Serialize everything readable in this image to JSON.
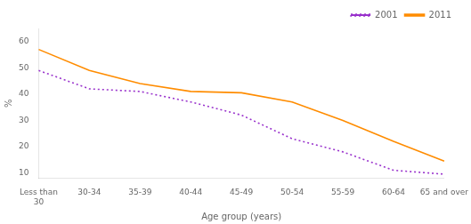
{
  "chart_data": {
    "type": "line",
    "xlabel": "Age group (years)",
    "ylabel": "%",
    "categories": [
      "Less than\n30",
      "30-34",
      "35-39",
      "40-44",
      "45-49",
      "50-54",
      "55-59",
      "60-64",
      "65 and over"
    ],
    "series": [
      {
        "name": "2001",
        "color": "#9932CC",
        "line_style": "dotted",
        "marker": "none",
        "values": [
          49,
          42,
          41,
          37,
          32,
          23,
          18,
          11,
          9.5
        ]
      },
      {
        "name": "2011",
        "color": "#FF8C00",
        "line_style": "solid",
        "marker": "none",
        "values": [
          57,
          49,
          44,
          41,
          40.5,
          37,
          30,
          22,
          14.5
        ]
      }
    ],
    "ylim": [
      8,
      65
    ],
    "yticks": [
      10,
      20,
      30,
      40,
      50,
      60
    ],
    "grid": false,
    "legend": "upper right",
    "background_color": "#ffffff"
  }
}
